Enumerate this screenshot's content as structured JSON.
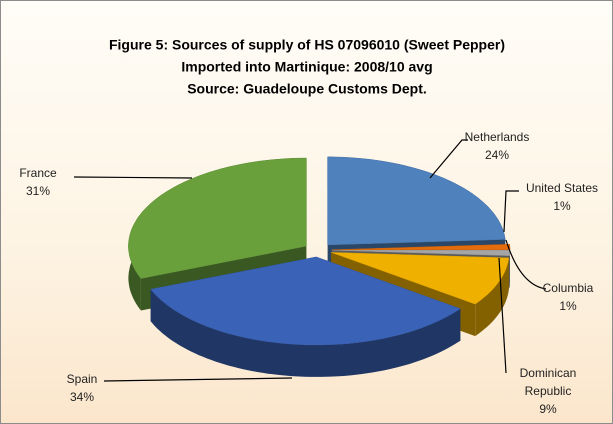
{
  "chart_data": {
    "type": "pie3d",
    "title": [
      "Figure 5: Sources of supply of HS 07096010 (Sweet Pepper)",
      "Imported into Martinique: 2008/10 avg",
      "Source: Guadeloupe Customs Dept."
    ],
    "categories": [
      "Netherlands",
      "United States",
      "Columbia",
      "Dominican Republic",
      "Spain",
      "France"
    ],
    "values": [
      24,
      1,
      1,
      9,
      34,
      31
    ],
    "value_labels": [
      "24%",
      "1%",
      "1%",
      "9%",
      "34%",
      "31%"
    ],
    "colors": [
      "#4f81bd",
      "#e46c0a",
      "#a5a5a5",
      "#f0b000",
      "#3a63b8",
      "#6aa03c"
    ]
  }
}
